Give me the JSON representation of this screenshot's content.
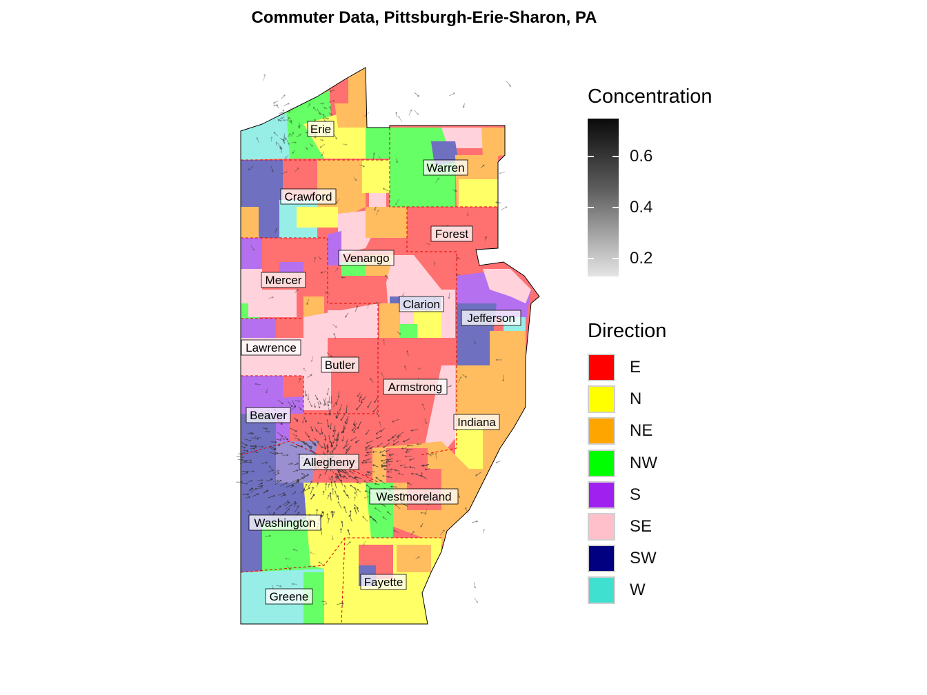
{
  "title": "Commuter Data, Pittsburgh-Erie-Sharon, PA",
  "legend": {
    "concentration": {
      "title": "Concentration",
      "ticks": [
        "0.6",
        "0.4",
        "0.2"
      ]
    },
    "direction": {
      "title": "Direction",
      "items": [
        {
          "label": "E",
          "color": "#ff0000"
        },
        {
          "label": "N",
          "color": "#ffff00"
        },
        {
          "label": "NE",
          "color": "#ffa500"
        },
        {
          "label": "NW",
          "color": "#00ff00"
        },
        {
          "label": "S",
          "color": "#a020f0"
        },
        {
          "label": "SE",
          "color": "#ffc0cb"
        },
        {
          "label": "SW",
          "color": "#000080"
        },
        {
          "label": "W",
          "color": "#40e0d0"
        }
      ]
    }
  },
  "counties": {
    "erie": "Erie",
    "warren": "Warren",
    "crawford": "Crawford",
    "forest": "Forest",
    "venango": "Venango",
    "mercer": "Mercer",
    "clarion": "Clarion",
    "jefferson": "Jefferson",
    "lawrence": "Lawrence",
    "butler": "Butler",
    "armstrong": "Armstrong",
    "beaver": "Beaver",
    "indiana": "Indiana",
    "allegheny": "Allegheny",
    "westmoreland": "Westmoreland",
    "washington": "Washington",
    "fayette": "Fayette",
    "greene": "Greene"
  }
}
